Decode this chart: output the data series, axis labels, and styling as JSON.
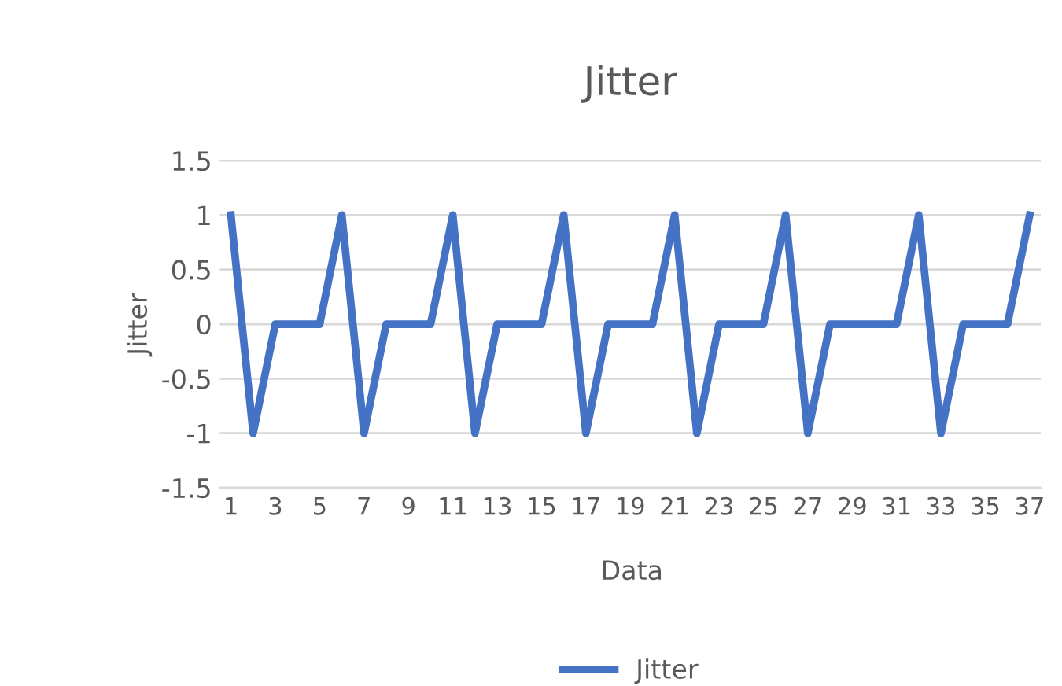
{
  "chart_data": {
    "type": "line",
    "title": "Jitter",
    "xlabel": "Data",
    "ylabel": "Jitter",
    "categories": [
      "1",
      null,
      "3",
      null,
      "5",
      null,
      "7",
      null,
      "9",
      null,
      "11",
      null,
      "13",
      null,
      "15",
      null,
      "17",
      null,
      "19",
      null,
      "21",
      null,
      "23",
      null,
      "25",
      null,
      "27",
      null,
      "29",
      null,
      "31",
      null,
      "33",
      null,
      "35",
      null,
      "37"
    ],
    "series": [
      {
        "name": "Jitter",
        "color": "#4472c4",
        "values": [
          1,
          -1,
          0,
          0,
          0,
          1,
          -1,
          0,
          0,
          0,
          1,
          -1,
          0,
          0,
          0,
          1,
          -1,
          0,
          0,
          0,
          1,
          -1,
          0,
          0,
          0,
          1,
          -1,
          0,
          0,
          0,
          0,
          1,
          -1,
          0,
          0,
          0,
          1
        ]
      }
    ],
    "ylim": [
      -1.5,
      1.5
    ],
    "yticks": [
      -1.5,
      -1,
      -0.5,
      0,
      0.5,
      1,
      1.5
    ],
    "grid": "y",
    "legend": "bottom",
    "marker": "none",
    "line_style": "solid"
  }
}
